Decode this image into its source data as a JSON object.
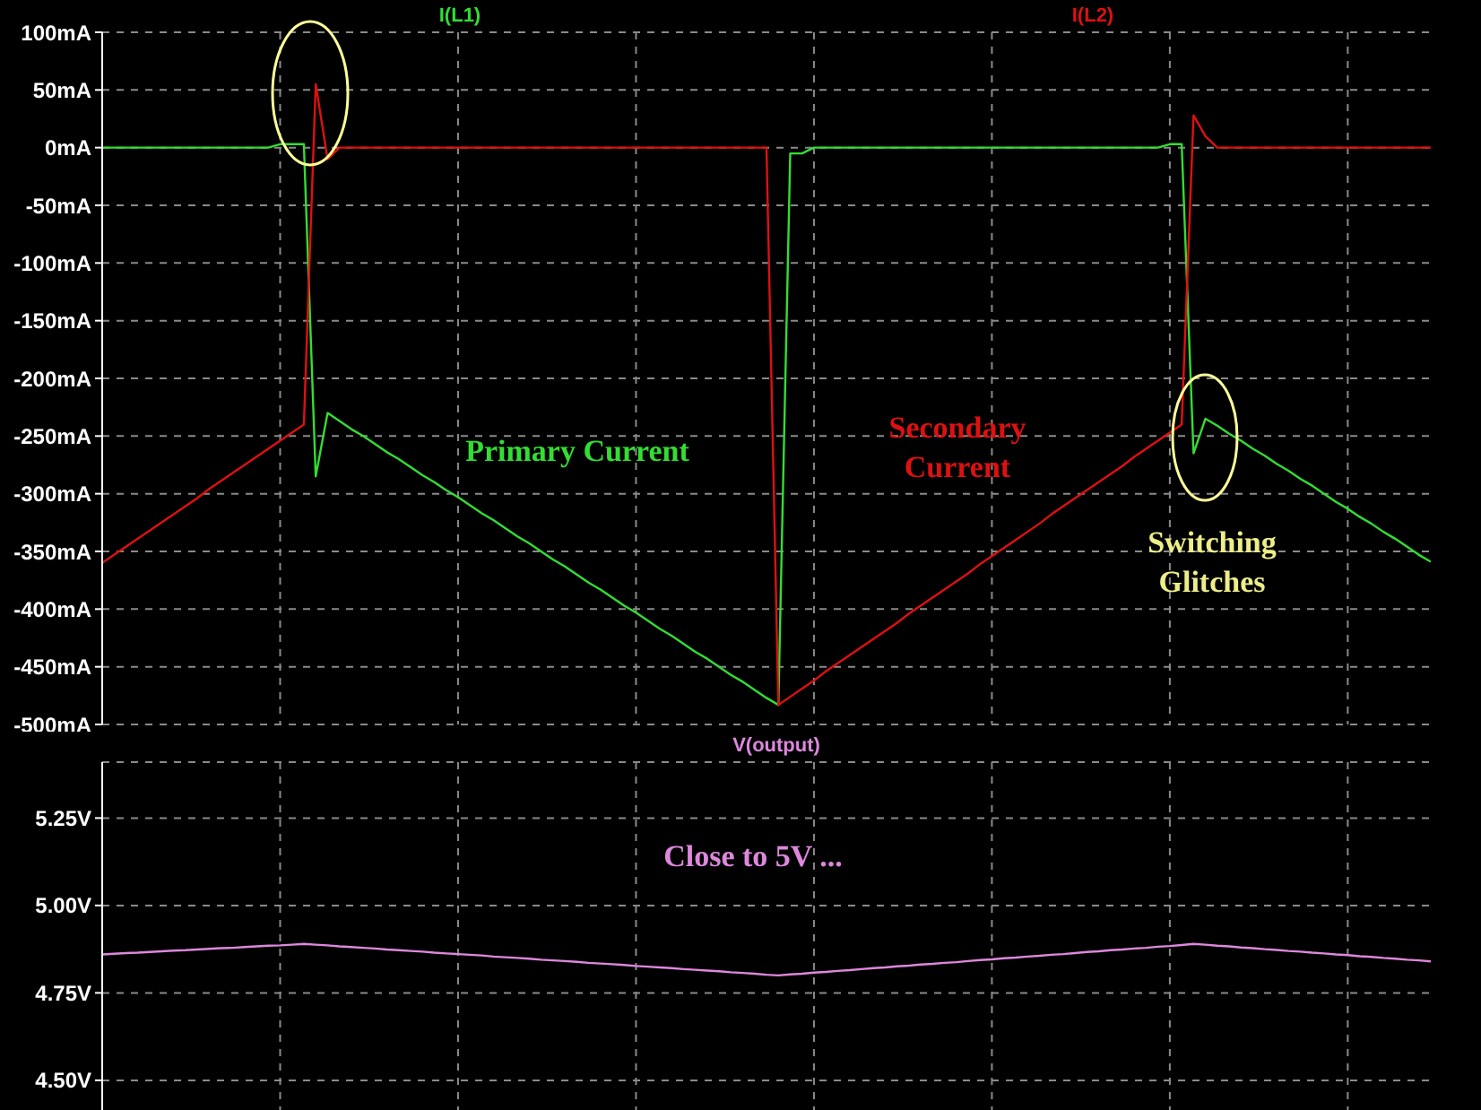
{
  "chart_data": [
    {
      "type": "line",
      "categories": [
        null,
        null,
        null,
        null,
        null,
        null,
        null,
        null,
        null,
        null,
        null,
        null,
        null,
        null,
        null,
        null,
        null,
        null,
        null,
        null,
        null,
        null,
        null,
        null,
        null,
        null,
        null,
        null,
        null,
        null,
        null,
        null,
        null,
        null,
        null,
        null,
        null,
        null,
        null,
        null,
        null,
        null,
        null,
        null,
        null,
        null,
        null,
        null,
        null,
        null,
        null,
        null,
        null,
        null,
        null,
        null,
        null,
        null,
        null,
        null,
        null,
        null,
        null,
        null,
        null,
        null,
        null,
        null,
        null,
        null,
        null,
        null,
        null,
        null,
        null,
        null,
        null,
        null,
        null,
        null,
        null,
        null,
        null,
        null,
        null,
        null,
        null,
        null,
        null,
        null,
        null,
        null,
        null,
        null,
        null,
        null,
        null,
        null,
        null,
        null,
        null,
        null,
        null,
        null,
        null,
        null,
        null,
        null,
        null,
        null,
        null,
        null,
        null
      ],
      "ylim": [
        -500,
        100
      ],
      "yticks": [
        {
          "value": 100,
          "label": "100mA"
        },
        {
          "value": 50,
          "label": "50mA"
        },
        {
          "value": 0,
          "label": "0mA"
        },
        {
          "value": -50,
          "label": "-50mA"
        },
        {
          "value": -100,
          "label": "-100mA"
        },
        {
          "value": -150,
          "label": "-150mA"
        },
        {
          "value": -200,
          "label": "-200mA"
        },
        {
          "value": -250,
          "label": "-250mA"
        },
        {
          "value": -300,
          "label": "-300mA"
        },
        {
          "value": -350,
          "label": "-350mA"
        },
        {
          "value": -400,
          "label": "-400mA"
        },
        {
          "value": -450,
          "label": "-450mA"
        },
        {
          "value": -500,
          "label": "-500mA"
        }
      ],
      "grid": true,
      "series": [
        {
          "name": "I(L1)",
          "color": "#33dd33",
          "values": [
            0,
            0,
            0,
            0,
            0,
            0,
            0,
            0,
            0,
            0,
            0,
            0,
            0,
            0,
            0,
            3,
            3,
            3,
            -285,
            -230,
            -237,
            -244,
            -250,
            -257,
            -264,
            -270,
            -277,
            -284,
            -290,
            -297,
            -303,
            -310,
            -317,
            -323,
            -330,
            -337,
            -343,
            -350,
            -357,
            -363,
            -370,
            -377,
            -383,
            -390,
            -397,
            -403,
            -410,
            -417,
            -423,
            -430,
            -437,
            -443,
            -450,
            -457,
            -463,
            -470,
            -477,
            -483,
            -5,
            -5,
            0,
            0,
            0,
            0,
            0,
            0,
            0,
            0,
            0,
            0,
            0,
            0,
            0,
            0,
            0,
            0,
            0,
            0,
            0,
            0,
            0,
            0,
            0,
            0,
            0,
            0,
            0,
            0,
            0,
            0,
            3,
            3,
            -265,
            -235,
            -241,
            -248,
            -254,
            -261,
            -267,
            -274,
            -280,
            -287,
            -293,
            -300,
            -307,
            -313,
            -320,
            -326,
            -333,
            -339,
            -346,
            -353,
            -359
          ]
        },
        {
          "name": "I(L2)",
          "color": "#dd1111",
          "values": [
            -360,
            -353,
            -346,
            -339,
            -332,
            -325,
            -318,
            -311,
            -304,
            -296,
            -289,
            -282,
            -275,
            -268,
            -261,
            -254,
            -247,
            -240,
            55,
            -10,
            0,
            0,
            0,
            0,
            0,
            0,
            0,
            0,
            0,
            0,
            0,
            0,
            0,
            0,
            0,
            0,
            0,
            0,
            0,
            0,
            0,
            0,
            0,
            0,
            0,
            0,
            0,
            0,
            0,
            0,
            0,
            0,
            0,
            0,
            0,
            0,
            0,
            -483,
            -476,
            -469,
            -462,
            -454,
            -447,
            -440,
            -433,
            -426,
            -419,
            -412,
            -404,
            -397,
            -390,
            -383,
            -376,
            -369,
            -361,
            -354,
            -347,
            -340,
            -333,
            -326,
            -318,
            -311,
            -304,
            -297,
            -290,
            -283,
            -276,
            -268,
            -261,
            -254,
            -247,
            -240,
            28,
            10,
            0,
            0,
            0,
            0,
            0,
            0,
            0,
            0,
            0,
            0,
            0,
            0,
            0,
            0,
            0,
            0,
            0,
            0,
            0
          ]
        }
      ],
      "annotations": [
        "Primary Current",
        "Secondary Current",
        "Switching Glitches"
      ]
    },
    {
      "type": "line",
      "categories": [
        null,
        null,
        null,
        null,
        null,
        null,
        null,
        null,
        null,
        null,
        null,
        null,
        null,
        null,
        null,
        null,
        null,
        null,
        null,
        null,
        null,
        null,
        null,
        null,
        null,
        null,
        null,
        null,
        null,
        null,
        null,
        null,
        null,
        null,
        null,
        null,
        null,
        null,
        null,
        null,
        null,
        null,
        null,
        null,
        null,
        null,
        null,
        null,
        null,
        null,
        null,
        null,
        null,
        null,
        null,
        null,
        null,
        null,
        null,
        null,
        null,
        null,
        null,
        null,
        null,
        null,
        null,
        null,
        null,
        null,
        null,
        null,
        null,
        null,
        null,
        null,
        null,
        null,
        null,
        null,
        null,
        null,
        null,
        null,
        null,
        null,
        null,
        null,
        null,
        null,
        null,
        null,
        null,
        null,
        null,
        null,
        null,
        null,
        null,
        null,
        null,
        null,
        null,
        null,
        null,
        null,
        null,
        null,
        null,
        null,
        null,
        null,
        null
      ],
      "ylim": [
        4.41,
        5.41
      ],
      "yticks": [
        {
          "value": 4.5,
          "label": "4.50V"
        },
        {
          "value": 4.75,
          "label": "4.75V"
        },
        {
          "value": 5,
          "label": "5.00V"
        },
        {
          "value": 5.25,
          "label": "5.25V"
        }
      ],
      "grid": true,
      "series": [
        {
          "name": "V(output)",
          "color": "#dd88dd",
          "values": [
            4.86,
            4.862,
            4.864,
            4.865,
            4.867,
            4.869,
            4.871,
            4.872,
            4.874,
            4.876,
            4.878,
            4.879,
            4.881,
            4.883,
            4.885,
            4.886,
            4.888,
            4.89,
            4.888,
            4.886,
            4.883,
            4.881,
            4.879,
            4.877,
            4.874,
            4.872,
            4.87,
            4.868,
            4.865,
            4.863,
            4.861,
            4.859,
            4.857,
            4.854,
            4.852,
            4.85,
            4.848,
            4.845,
            4.843,
            4.841,
            4.839,
            4.836,
            4.834,
            4.832,
            4.83,
            4.827,
            4.825,
            4.823,
            4.821,
            4.818,
            4.816,
            4.814,
            4.812,
            4.809,
            4.807,
            4.805,
            4.802,
            4.8,
            4.803,
            4.805,
            4.808,
            4.81,
            4.813,
            4.815,
            4.818,
            4.821,
            4.823,
            4.826,
            4.828,
            4.831,
            4.833,
            4.836,
            4.838,
            4.841,
            4.844,
            4.846,
            4.849,
            4.851,
            4.854,
            4.856,
            4.859,
            4.861,
            4.864,
            4.867,
            4.869,
            4.872,
            4.874,
            4.877,
            4.879,
            4.882,
            4.884,
            4.887,
            4.89,
            4.888,
            4.885,
            4.883,
            4.88,
            4.878,
            4.875,
            4.873,
            4.87,
            4.868,
            4.865,
            4.863,
            4.86,
            4.858,
            4.855,
            4.853,
            4.85,
            4.848,
            4.845,
            4.843,
            4.84
          ]
        }
      ],
      "annotations": [
        "Close to 5V ..."
      ]
    }
  ]
}
